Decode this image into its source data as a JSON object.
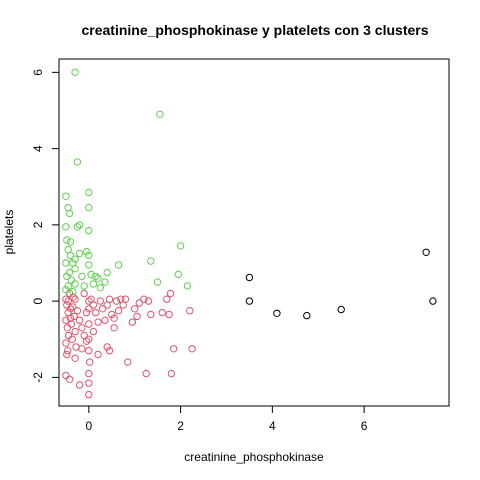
{
  "chart_data": {
    "type": "scatter",
    "title": "creatinine_phosphokinase  y  platelets con  3  clusters",
    "xlabel": "creatinine_phosphokinase",
    "ylabel": "platelets",
    "xlim": [
      -0.65,
      7.85
    ],
    "ylim": [
      -2.75,
      6.35
    ],
    "xticks": [
      "0",
      "2",
      "4",
      "6"
    ],
    "yticks": [
      "-2",
      "0",
      "2",
      "4",
      "6"
    ],
    "grid": false,
    "legend": "none",
    "series": [
      {
        "color": "#DF536B",
        "points": [
          [
            -0.5,
            0.05
          ],
          [
            -0.48,
            -0.1
          ],
          [
            -0.45,
            -0.3
          ],
          [
            -0.5,
            -0.5
          ],
          [
            -0.47,
            -0.7
          ],
          [
            -0.44,
            -0.9
          ],
          [
            -0.5,
            -1.1
          ],
          [
            -0.46,
            -1.3
          ],
          [
            -0.42,
            0.2
          ],
          [
            -0.4,
            -0.2
          ],
          [
            -0.38,
            -0.6
          ],
          [
            -0.36,
            -1.0
          ],
          [
            -0.34,
            0.1
          ],
          [
            -0.32,
            -0.4
          ],
          [
            -0.3,
            -0.8
          ],
          [
            -0.28,
            -1.2
          ],
          [
            -0.45,
            0.0
          ],
          [
            -0.4,
            -0.45
          ],
          [
            -0.35,
            -0.15
          ],
          [
            -0.3,
            0.05
          ],
          [
            -0.25,
            -0.25
          ],
          [
            -0.2,
            -0.5
          ],
          [
            -0.15,
            -0.7
          ],
          [
            -0.1,
            -0.9
          ],
          [
            -0.05,
            -0.3
          ],
          [
            0.0,
            0.0
          ],
          [
            0.0,
            -0.2
          ],
          [
            0.0,
            -0.6
          ],
          [
            0.0,
            -1.0
          ],
          [
            0.0,
            -1.3
          ],
          [
            0.02,
            -1.6
          ],
          [
            0.0,
            -1.9
          ],
          [
            0.0,
            -2.15
          ],
          [
            0.0,
            -2.45
          ],
          [
            -0.5,
            -1.95
          ],
          [
            -0.42,
            -2.05
          ],
          [
            -0.2,
            -2.2
          ],
          [
            -0.48,
            -1.4
          ],
          [
            -0.3,
            -1.5
          ],
          [
            -0.15,
            -1.25
          ],
          [
            0.05,
            0.05
          ],
          [
            0.1,
            -0.1
          ],
          [
            0.15,
            -0.3
          ],
          [
            0.2,
            -0.55
          ],
          [
            0.25,
            0.0
          ],
          [
            0.3,
            -0.2
          ],
          [
            0.35,
            -0.5
          ],
          [
            0.4,
            -0.1
          ],
          [
            0.45,
            0.05
          ],
          [
            0.5,
            -0.35
          ],
          [
            0.55,
            -0.7
          ],
          [
            0.6,
            0.0
          ],
          [
            0.65,
            -0.25
          ],
          [
            0.7,
            0.05
          ],
          [
            0.4,
            -1.2
          ],
          [
            0.45,
            -1.3
          ],
          [
            0.55,
            -0.45
          ],
          [
            0.75,
            -0.1
          ],
          [
            0.8,
            0.05
          ],
          [
            0.85,
            -1.6
          ],
          [
            0.95,
            -0.55
          ],
          [
            1.0,
            -0.2
          ],
          [
            1.05,
            -0.4
          ],
          [
            1.1,
            -0.05
          ],
          [
            1.2,
            0.05
          ],
          [
            1.25,
            -1.9
          ],
          [
            1.3,
            0.0
          ],
          [
            1.35,
            -0.35
          ],
          [
            1.6,
            -0.3
          ],
          [
            1.7,
            0.05
          ],
          [
            1.75,
            -0.35
          ],
          [
            1.78,
            0.2
          ],
          [
            1.8,
            -1.9
          ],
          [
            1.85,
            -1.25
          ],
          [
            2.2,
            -0.25
          ],
          [
            2.25,
            -1.25
          ],
          [
            0.2,
            -1.4
          ],
          [
            0.1,
            -0.8
          ],
          [
            -0.1,
            0.2
          ],
          [
            -0.05,
            -1.05
          ]
        ]
      },
      {
        "color": "#61D04F",
        "points": [
          [
            -0.3,
            6.0
          ],
          [
            1.55,
            4.9
          ],
          [
            -0.25,
            3.65
          ],
          [
            -0.5,
            2.75
          ],
          [
            -0.45,
            2.45
          ],
          [
            -0.42,
            2.3
          ],
          [
            -0.5,
            1.95
          ],
          [
            -0.48,
            1.6
          ],
          [
            -0.45,
            1.35
          ],
          [
            -0.4,
            1.2
          ],
          [
            -0.35,
            1.0
          ],
          [
            -0.3,
            0.85
          ],
          [
            -0.5,
            1.0
          ],
          [
            -0.42,
            0.75
          ],
          [
            -0.38,
            0.55
          ],
          [
            -0.45,
            0.4
          ],
          [
            -0.5,
            0.3
          ],
          [
            -0.35,
            0.25
          ],
          [
            -0.3,
            0.45
          ],
          [
            -0.25,
            1.95
          ],
          [
            -0.2,
            2.0
          ],
          [
            -0.2,
            1.25
          ],
          [
            -0.15,
            0.65
          ],
          [
            -0.1,
            0.4
          ],
          [
            -0.05,
            1.3
          ],
          [
            0.0,
            2.85
          ],
          [
            0.0,
            2.45
          ],
          [
            0.0,
            1.85
          ],
          [
            0.0,
            1.2
          ],
          [
            0.0,
            0.95
          ],
          [
            0.05,
            0.7
          ],
          [
            0.1,
            0.45
          ],
          [
            0.15,
            0.65
          ],
          [
            0.2,
            0.6
          ],
          [
            0.25,
            0.35
          ],
          [
            0.35,
            0.5
          ],
          [
            0.4,
            0.75
          ],
          [
            0.65,
            0.95
          ],
          [
            1.35,
            1.05
          ],
          [
            1.5,
            0.5
          ],
          [
            1.95,
            0.7
          ],
          [
            2.0,
            1.45
          ],
          [
            2.15,
            0.4
          ],
          [
            -0.4,
            1.55
          ],
          [
            -0.48,
            0.65
          ],
          [
            -0.3,
            1.1
          ]
        ]
      },
      {
        "color": "#000000",
        "points": [
          [
            3.5,
            0.62
          ],
          [
            3.5,
            0.0
          ],
          [
            4.1,
            -0.32
          ],
          [
            4.75,
            -0.38
          ],
          [
            5.5,
            -0.22
          ],
          [
            7.35,
            1.28
          ],
          [
            7.5,
            0.0
          ]
        ]
      }
    ]
  }
}
